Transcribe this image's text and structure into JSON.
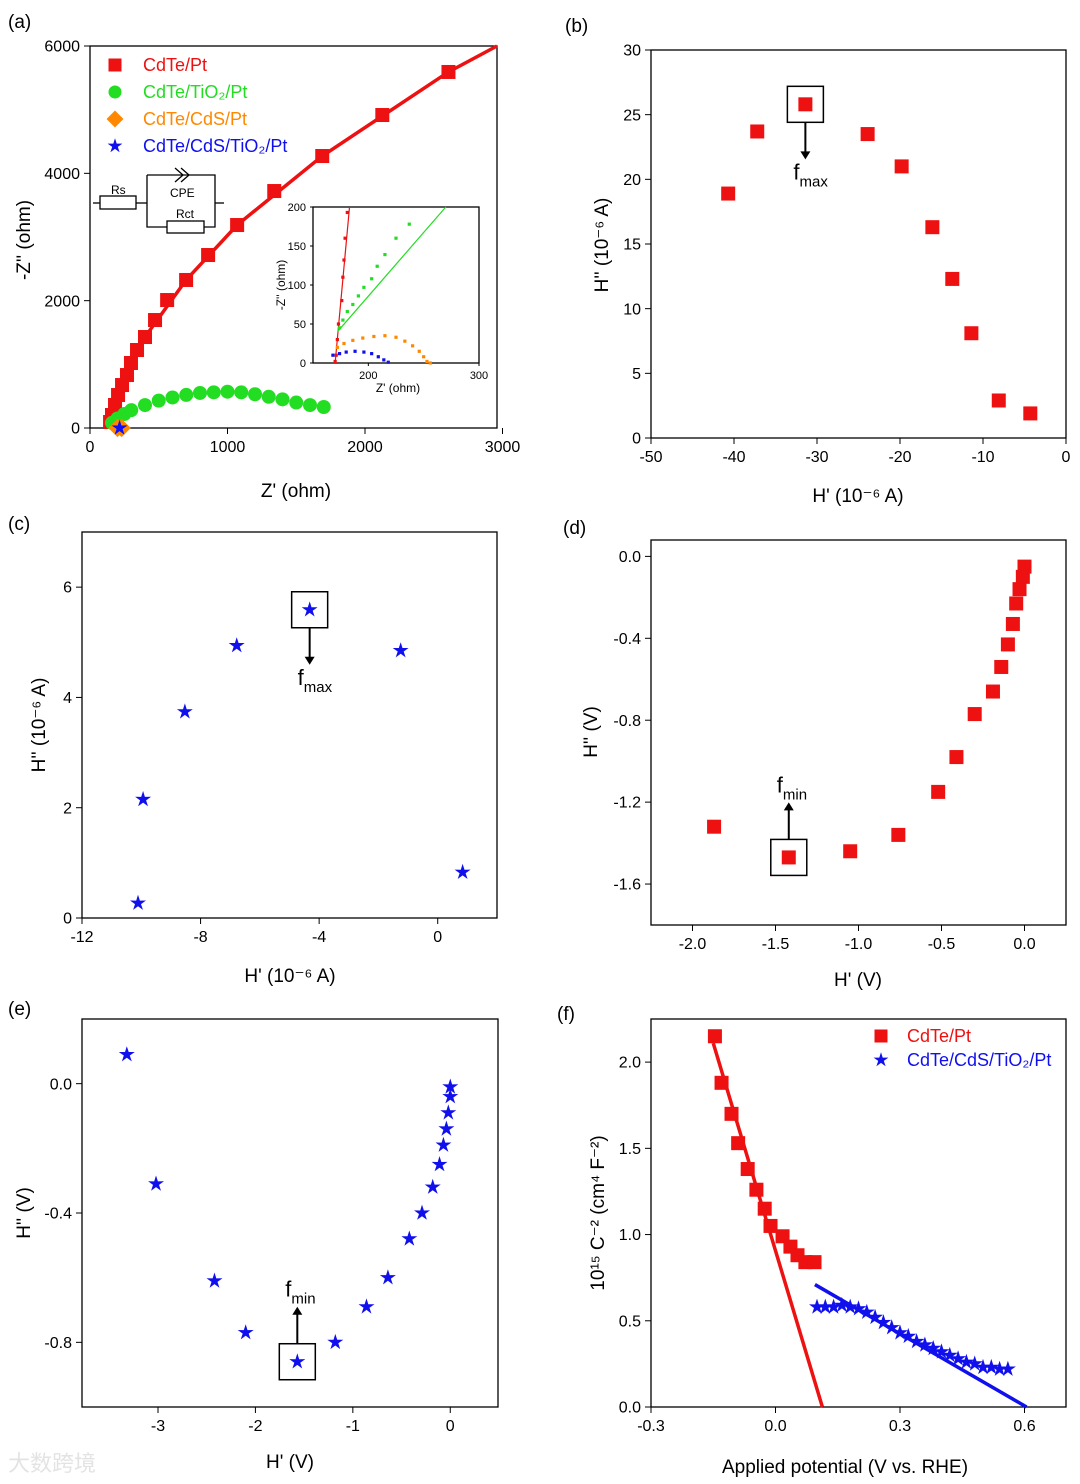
{
  "watermark": "大数跨境",
  "chart_data": [
    {
      "panel": "(a)",
      "type": "scatter",
      "xlabel": "Z' (ohm)",
      "ylabel": "-Z'' (ohm)",
      "xlim": [
        0,
        2960
      ],
      "ylim": [
        0,
        6000
      ],
      "xticks": [
        0,
        1000,
        2000,
        3000
      ],
      "yticks": [
        0,
        2000,
        4000,
        6000
      ],
      "series": [
        {
          "name": "CdTe/Pt",
          "color": "#ee1111",
          "marker": "square",
          "points": [
            [
              146,
              94
            ],
            [
              160,
              204
            ],
            [
              182,
              361
            ],
            [
              204,
              518
            ],
            [
              233,
              675
            ],
            [
              269,
              832
            ],
            [
              298,
              1021
            ],
            [
              342,
              1225
            ],
            [
              400,
              1429
            ],
            [
              473,
              1696
            ],
            [
              561,
              2010
            ],
            [
              699,
              2325
            ],
            [
              859,
              2717
            ],
            [
              1070,
              3188
            ],
            [
              1340,
              3722
            ],
            [
              1689,
              4272
            ],
            [
              2126,
              4916
            ],
            [
              2607,
              5592
            ]
          ],
          "fit": [
            [
              110,
              0
            ],
            [
              146,
              94
            ],
            [
              233,
              675
            ],
            [
              400,
              1429
            ],
            [
              699,
              2325
            ],
            [
              1070,
              3188
            ],
            [
              1689,
              4272
            ],
            [
              2607,
              5592
            ],
            [
              2960,
              6000
            ]
          ]
        },
        {
          "name": "CdTe/TiO₂/Pt",
          "color": "#22dd22",
          "marker": "circle",
          "points": [
            [
              160,
              80
            ],
            [
              200,
              150
            ],
            [
              250,
              220
            ],
            [
              300,
              280
            ],
            [
              400,
              360
            ],
            [
              500,
              430
            ],
            [
              600,
              480
            ],
            [
              700,
              520
            ],
            [
              800,
              550
            ],
            [
              900,
              560
            ],
            [
              1000,
              570
            ],
            [
              1100,
              560
            ],
            [
              1200,
              530
            ],
            [
              1300,
              490
            ],
            [
              1400,
              450
            ],
            [
              1500,
              400
            ],
            [
              1600,
              360
            ],
            [
              1700,
              330
            ]
          ]
        },
        {
          "name": "CdTe/CdS/Pt",
          "color": "#ff8800",
          "marker": "diamond",
          "points": [
            [
              200,
              0
            ],
            [
              230,
              0
            ]
          ]
        },
        {
          "name": "CdTe/CdS/TiO₂/Pt",
          "color": "#1010ee",
          "marker": "star",
          "points": [
            [
              215,
              0
            ]
          ]
        }
      ],
      "legend": "top-left",
      "circuit": {
        "rs": "Rs",
        "cpe": "CPE",
        "rct": "Rct"
      },
      "inset": {
        "xlabel": "Z' (ohm)",
        "ylabel": "-Z'' (ohm)",
        "xlim": [
          150,
          300
        ],
        "ylim": [
          0,
          200
        ],
        "xticks": [
          200,
          300
        ],
        "yticks": [
          0,
          50,
          100,
          150,
          200
        ],
        "series": [
          {
            "color": "#ee1111",
            "points": [
              [
                170,
                2
              ],
              [
                171,
                10
              ],
              [
                172,
                30
              ],
              [
                173,
                50
              ],
              [
                176,
                80
              ],
              [
                177,
                110
              ],
              [
                178,
                132
              ],
              [
                179,
                160
              ],
              [
                181,
                193
              ]
            ],
            "fit": [
              [
                170,
                0
              ],
              [
                183,
                200
              ]
            ]
          },
          {
            "color": "#22dd22",
            "points": [
              [
                174,
                45
              ],
              [
                177,
                55
              ],
              [
                181,
                66
              ],
              [
                186,
                75
              ],
              [
                191,
                86
              ],
              [
                196,
                97
              ],
              [
                203,
                108
              ],
              [
                208,
                124
              ],
              [
                215,
                139
              ],
              [
                225,
                160
              ],
              [
                237,
                178
              ]
            ],
            "fit": [
              [
                172,
                40
              ],
              [
                270,
                200
              ]
            ]
          },
          {
            "color": "#ff8800",
            "points": [
              [
                172,
                20
              ],
              [
                178,
                25
              ],
              [
                186,
                29
              ],
              [
                195,
                32
              ],
              [
                205,
                34
              ],
              [
                215,
                35
              ],
              [
                225,
                33
              ],
              [
                233,
                28
              ],
              [
                240,
                22
              ],
              [
                246,
                15
              ],
              [
                250,
                8
              ],
              [
                253,
                2
              ],
              [
                256,
                0
              ]
            ]
          },
          {
            "color": "#1010ee",
            "points": [
              [
                168,
                10
              ],
              [
                174,
                12
              ],
              [
                180,
                14
              ],
              [
                188,
                15
              ],
              [
                196,
                14
              ],
              [
                203,
                12
              ],
              [
                209,
                8
              ],
              [
                214,
                4
              ],
              [
                218,
                1
              ]
            ]
          }
        ]
      }
    },
    {
      "panel": "(b)",
      "type": "scatter",
      "xlabel": "H' (10⁻⁶ A)",
      "ylabel": "H'' (10⁻⁶ A)",
      "xlim": [
        -50,
        0
      ],
      "ylim": [
        0,
        30
      ],
      "xticks": [
        -50,
        -40,
        -30,
        -20,
        -10,
        0
      ],
      "yticks": [
        0,
        5,
        10,
        15,
        20,
        25,
        30
      ],
      "series": [
        {
          "color": "#ee1111",
          "marker": "square",
          "points": [
            [
              -40.7,
              18.9
            ],
            [
              -37.2,
              23.7
            ],
            [
              -31.4,
              25.8
            ],
            [
              -23.9,
              23.5
            ],
            [
              -19.8,
              21.0
            ],
            [
              -16.1,
              16.3
            ],
            [
              -13.7,
              12.3
            ],
            [
              -11.4,
              8.1
            ],
            [
              -8.1,
              2.9
            ],
            [
              -4.3,
              1.9
            ]
          ]
        }
      ],
      "annotation": {
        "text": "f",
        "sub": "max",
        "point": [
          -31.4,
          25.8
        ],
        "dir": "down"
      }
    },
    {
      "panel": "(c)",
      "type": "scatter",
      "xlabel": "H' (10⁻⁶ A)",
      "ylabel": "H'' (10⁻⁶ A)",
      "xlim": [
        -12,
        2
      ],
      "ylim": [
        0,
        7
      ],
      "xticks": [
        -12,
        -8,
        -4,
        0
      ],
      "yticks": [
        0,
        2,
        4,
        6
      ],
      "series": [
        {
          "color": "#1010ee",
          "marker": "star",
          "points": [
            [
              -10.11,
              0.27
            ],
            [
              -9.94,
              2.15
            ],
            [
              -8.53,
              3.74
            ],
            [
              -6.78,
              4.94
            ],
            [
              -4.32,
              5.59
            ],
            [
              -1.25,
              4.85
            ],
            [
              0.84,
              0.83
            ]
          ]
        }
      ],
      "annotation": {
        "text": "f",
        "sub": "max",
        "point": [
          -4.32,
          5.59
        ],
        "dir": "down"
      }
    },
    {
      "panel": "(d)",
      "type": "scatter",
      "xlabel": "H' (V)",
      "ylabel": "H'' (V)",
      "xlim": [
        -2.25,
        0.25
      ],
      "ylim": [
        -1.8,
        0.08
      ],
      "xticks": [
        "-2.0",
        "-1.5",
        "-1.0",
        "-0.5",
        "0.0"
      ],
      "yticks": [
        "0.0",
        "-0.4",
        "-0.8",
        "-1.2",
        "-1.6"
      ],
      "series": [
        {
          "color": "#ee1111",
          "marker": "square",
          "points": [
            [
              -1.87,
              -1.32
            ],
            [
              -1.42,
              -1.47
            ],
            [
              -1.05,
              -1.44
            ],
            [
              -0.76,
              -1.36
            ],
            [
              -0.52,
              -1.15
            ],
            [
              -0.41,
              -0.98
            ],
            [
              -0.3,
              -0.77
            ],
            [
              -0.19,
              -0.66
            ],
            [
              -0.14,
              -0.54
            ],
            [
              -0.1,
              -0.43
            ],
            [
              -0.07,
              -0.33
            ],
            [
              -0.05,
              -0.23
            ],
            [
              -0.03,
              -0.16
            ],
            [
              -0.01,
              -0.1
            ],
            [
              0.0,
              -0.05
            ]
          ]
        }
      ],
      "annotation": {
        "text": "f",
        "sub": "min",
        "point": [
          -1.42,
          -1.47
        ],
        "dir": "up"
      }
    },
    {
      "panel": "(e)",
      "type": "scatter",
      "xlabel": "H' (V)",
      "ylabel": "H'' (V)",
      "xlim": [
        -3.78,
        0.49
      ],
      "ylim": [
        -1.0,
        0.2
      ],
      "xticks": [
        "-3",
        "-2",
        "-1",
        "0"
      ],
      "yticks": [
        "0.0",
        "-0.4",
        "-0.8"
      ],
      "series": [
        {
          "color": "#1010ee",
          "marker": "star",
          "points": [
            [
              -3.32,
              0.09
            ],
            [
              -3.02,
              -0.31
            ],
            [
              -2.42,
              -0.61
            ],
            [
              -2.1,
              -0.77
            ],
            [
              -1.57,
              -0.86
            ],
            [
              -1.18,
              -0.8
            ],
            [
              -0.86,
              -0.69
            ],
            [
              -0.64,
              -0.6
            ],
            [
              -0.42,
              -0.48
            ],
            [
              -0.29,
              -0.4
            ],
            [
              -0.18,
              -0.32
            ],
            [
              -0.11,
              -0.25
            ],
            [
              -0.07,
              -0.19
            ],
            [
              -0.04,
              -0.14
            ],
            [
              -0.02,
              -0.09
            ],
            [
              0,
              -0.04
            ],
            [
              0,
              -0.01
            ]
          ]
        }
      ],
      "annotation": {
        "text": "f",
        "sub": "min",
        "point": [
          -1.57,
          -0.86
        ],
        "dir": "up"
      }
    },
    {
      "panel": "(f)",
      "type": "scatter",
      "xlabel": "Applied potential (V vs. RHE)",
      "ylabel": "10¹⁵ C⁻² (cm⁴ F⁻²)",
      "xlim": [
        -0.3,
        0.7
      ],
      "ylim": [
        0,
        2.25
      ],
      "xticks": [
        "-0.3",
        "0.0",
        "0.3",
        "0.6"
      ],
      "yticks": [
        "0.0",
        "0.5",
        "1.0",
        "1.5",
        "2.0"
      ],
      "series": [
        {
          "name": "CdTe/Pt",
          "color": "#ee1111",
          "marker": "square",
          "points": [
            [
              -0.146,
              2.15
            ],
            [
              -0.13,
              1.88
            ],
            [
              -0.106,
              1.7
            ],
            [
              -0.09,
              1.53
            ],
            [
              -0.067,
              1.38
            ],
            [
              -0.046,
              1.26
            ],
            [
              -0.026,
              1.15
            ],
            [
              -0.012,
              1.05
            ],
            [
              0.017,
              0.99
            ],
            [
              0.036,
              0.93
            ],
            [
              0.053,
              0.88
            ],
            [
              0.072,
              0.84
            ],
            [
              0.094,
              0.84
            ]
          ],
          "fit": [
            [
              -0.15,
              2.11
            ],
            [
              0.113,
              0
            ]
          ]
        },
        {
          "name": "CdTe/CdS/TiO₂/Pt",
          "color": "#1010ee",
          "marker": "star",
          "points": [
            [
              0.1,
              0.58
            ],
            [
              0.12,
              0.58
            ],
            [
              0.14,
              0.58
            ],
            [
              0.16,
              0.59
            ],
            [
              0.18,
              0.58
            ],
            [
              0.2,
              0.57
            ],
            [
              0.22,
              0.55
            ],
            [
              0.24,
              0.52
            ],
            [
              0.26,
              0.49
            ],
            [
              0.28,
              0.46
            ],
            [
              0.3,
              0.43
            ],
            [
              0.32,
              0.41
            ],
            [
              0.34,
              0.38
            ],
            [
              0.36,
              0.36
            ],
            [
              0.38,
              0.34
            ],
            [
              0.4,
              0.32
            ],
            [
              0.42,
              0.3
            ],
            [
              0.44,
              0.28
            ],
            [
              0.46,
              0.26
            ],
            [
              0.48,
              0.25
            ],
            [
              0.5,
              0.23
            ],
            [
              0.52,
              0.23
            ],
            [
              0.54,
              0.22
            ],
            [
              0.56,
              0.22
            ]
          ],
          "fit": [
            [
              0.095,
              0.71
            ],
            [
              0.605,
              0.0
            ]
          ]
        }
      ],
      "legend": "top-right"
    }
  ]
}
